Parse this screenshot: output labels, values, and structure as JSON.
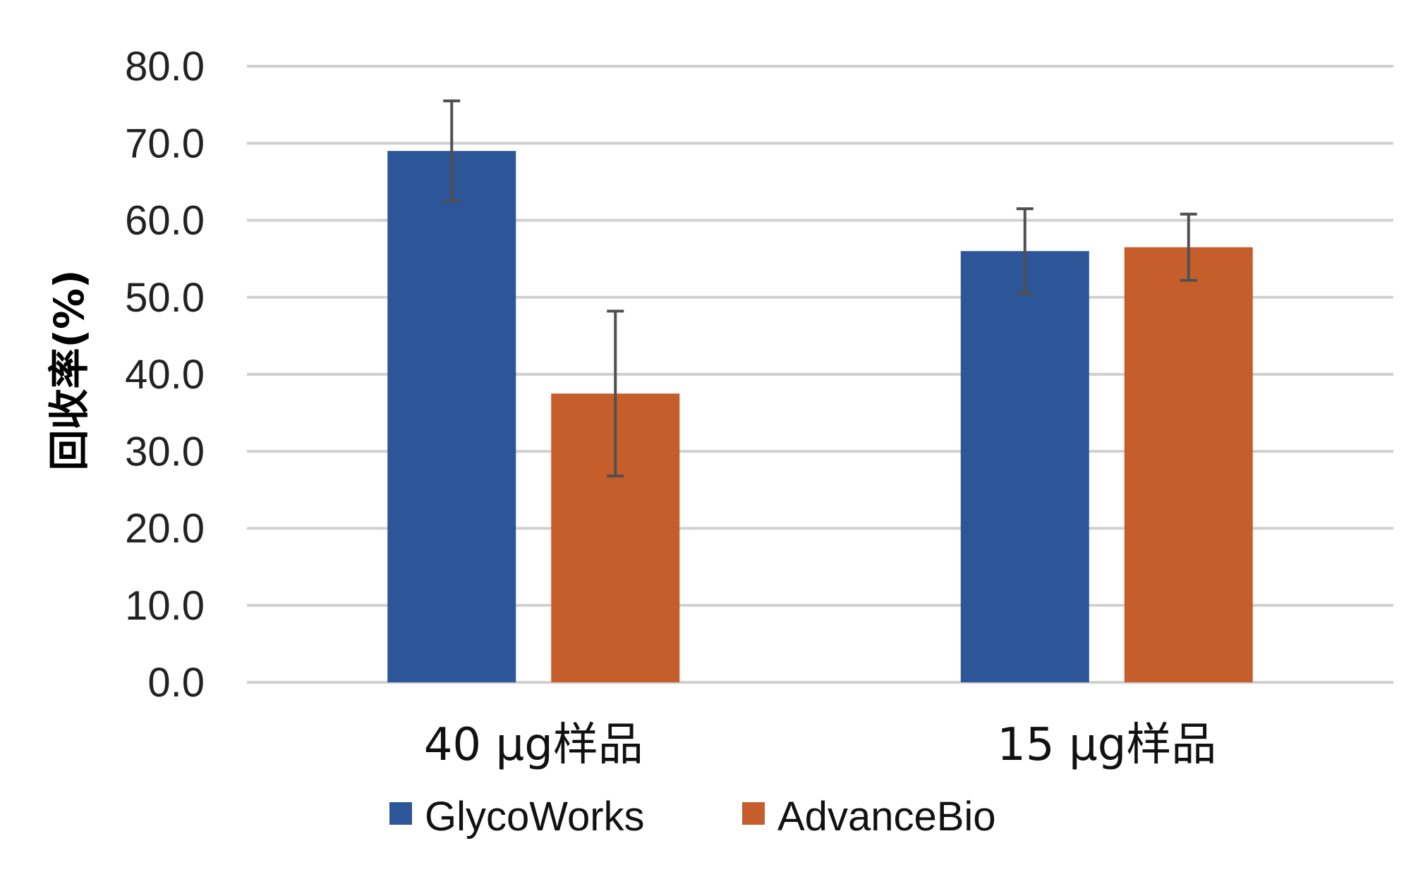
{
  "chart_data": {
    "type": "bar",
    "title": "",
    "xlabel": "",
    "ylabel": "回收率(%)",
    "ylim": [
      0,
      80
    ],
    "yticks": [
      "0.0",
      "10.0",
      "20.0",
      "30.0",
      "40.0",
      "50.0",
      "60.0",
      "70.0",
      "80.0"
    ],
    "grid": true,
    "legend_position": "bottom",
    "categories": [
      "40 μg样品",
      "15 μg样品"
    ],
    "series": [
      {
        "name": "GlycoWorks",
        "color": "#2c5697",
        "values": [
          69.0,
          56.0
        ],
        "error": [
          6.5,
          5.5
        ]
      },
      {
        "name": "AdvanceBio",
        "color": "#c55e2b",
        "values": [
          37.5,
          56.5
        ],
        "error": [
          10.7,
          4.3
        ]
      }
    ]
  }
}
